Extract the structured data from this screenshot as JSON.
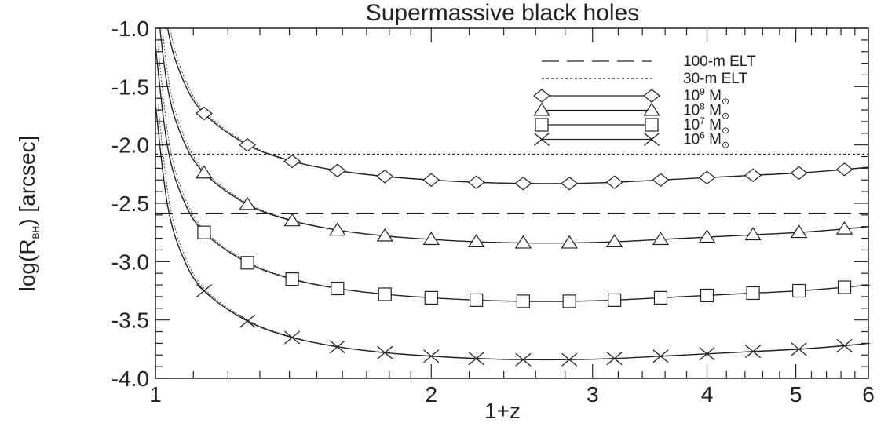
{
  "chart_data": {
    "type": "line",
    "title": "Supermassive black holes",
    "xlabel": "1+z",
    "ylabel": {
      "main": "log(R",
      "sub": "BH",
      "rest": ") [arcsec]"
    },
    "x_scale": "log",
    "xlim": [
      1,
      6
    ],
    "ylim": [
      -4.0,
      -1.0
    ],
    "x_ticks": [
      1,
      2,
      3,
      4,
      5,
      6
    ],
    "x_tick_labels": [
      "1",
      "2",
      "3",
      "4",
      "5",
      "6"
    ],
    "y_ticks": [
      -4.0,
      -3.5,
      -3.0,
      -2.5,
      -2.0,
      -1.5,
      -1.0
    ],
    "y_tick_labels": [
      "-4.0",
      "-3.5",
      "-3.0",
      "-2.5",
      "-2.0",
      "-1.5",
      "-1.0"
    ],
    "grid": false,
    "legend_position": "top-right",
    "reference_lines": [
      {
        "name": "100-m ELT",
        "y": -2.59,
        "style": "dashed"
      },
      {
        "name": "30-m ELT",
        "y": -2.08,
        "style": "dotted"
      }
    ],
    "series": [
      {
        "name": {
          "base": "10",
          "exp": "9",
          "unit": "M",
          "sub": "⊙"
        },
        "marker": "diamond",
        "x": [
          1.13,
          1.26,
          1.41,
          1.58,
          1.78,
          2.0,
          2.24,
          2.52,
          2.83,
          3.17,
          3.56,
          4.0,
          4.49,
          5.04,
          5.65
        ],
        "y": [
          -1.73,
          -2.0,
          -2.14,
          -2.22,
          -2.27,
          -2.3,
          -2.32,
          -2.33,
          -2.33,
          -2.32,
          -2.3,
          -2.28,
          -2.26,
          -2.24,
          -2.21
        ]
      },
      {
        "name": {
          "base": "10",
          "exp": "8",
          "unit": "M",
          "sub": "⊙"
        },
        "marker": "triangle",
        "x": [
          1.13,
          1.26,
          1.41,
          1.58,
          1.78,
          2.0,
          2.24,
          2.52,
          2.83,
          3.17,
          3.56,
          4.0,
          4.49,
          5.04,
          5.65
        ],
        "y": [
          -2.24,
          -2.51,
          -2.65,
          -2.73,
          -2.78,
          -2.81,
          -2.83,
          -2.84,
          -2.84,
          -2.83,
          -2.81,
          -2.79,
          -2.77,
          -2.75,
          -2.72
        ]
      },
      {
        "name": {
          "base": "10",
          "exp": "7",
          "unit": "M",
          "sub": "⊙"
        },
        "marker": "square",
        "x": [
          1.13,
          1.26,
          1.41,
          1.58,
          1.78,
          2.0,
          2.24,
          2.52,
          2.83,
          3.17,
          3.56,
          4.0,
          4.49,
          5.04,
          5.65
        ],
        "y": [
          -2.75,
          -3.01,
          -3.15,
          -3.23,
          -3.28,
          -3.31,
          -3.33,
          -3.34,
          -3.34,
          -3.33,
          -3.31,
          -3.29,
          -3.27,
          -3.25,
          -3.22
        ]
      },
      {
        "name": {
          "base": "10",
          "exp": "6",
          "unit": "M",
          "sub": "⊙"
        },
        "marker": "x",
        "x": [
          1.13,
          1.26,
          1.41,
          1.58,
          1.78,
          2.0,
          2.24,
          2.52,
          2.83,
          3.17,
          3.56,
          4.0,
          4.49,
          5.04,
          5.65
        ],
        "y": [
          -3.25,
          -3.51,
          -3.65,
          -3.73,
          -3.78,
          -3.81,
          -3.83,
          -3.84,
          -3.84,
          -3.83,
          -3.81,
          -3.79,
          -3.77,
          -3.75,
          -3.72
        ]
      }
    ]
  },
  "colors": {
    "ink": "#222222",
    "background": "#ffffff"
  }
}
